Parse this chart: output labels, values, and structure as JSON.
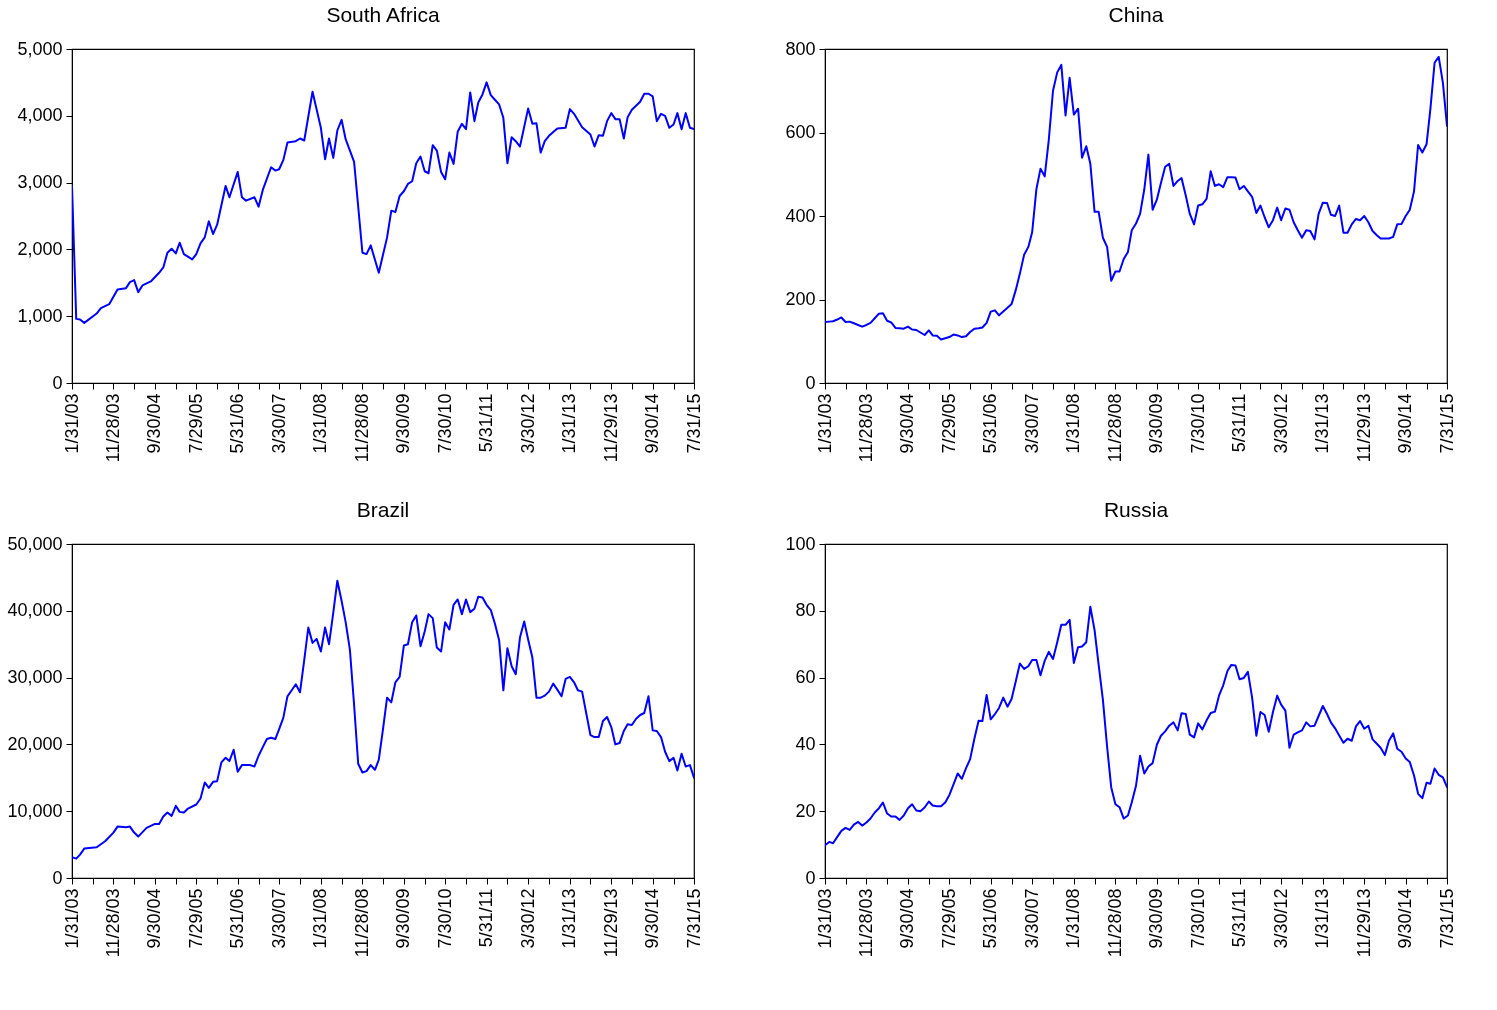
{
  "chart_data": [
    {
      "type": "line",
      "title": "South Africa",
      "line_style": "solid",
      "xlim": [
        "2003-01",
        "2015-07"
      ],
      "xticks": [
        {
          "value": "2003-01",
          "label": "1/31/03"
        },
        {
          "value": "2003-06",
          "label": null
        },
        {
          "value": "2003-11",
          "label": "11/28/03"
        },
        {
          "value": "2004-04",
          "label": null
        },
        {
          "value": "2004-09",
          "label": "9/30/04"
        },
        {
          "value": "2005-02",
          "label": null
        },
        {
          "value": "2005-07",
          "label": "7/29/05"
        },
        {
          "value": "2005-12",
          "label": null
        },
        {
          "value": "2006-05",
          "label": "5/31/06"
        },
        {
          "value": "2006-10",
          "label": null
        },
        {
          "value": "2007-03",
          "label": "3/30/07"
        },
        {
          "value": "2007-08",
          "label": null
        },
        {
          "value": "2008-01",
          "label": "1/31/08"
        },
        {
          "value": "2008-06",
          "label": null
        },
        {
          "value": "2008-11",
          "label": "11/28/08"
        },
        {
          "value": "2009-04",
          "label": null
        },
        {
          "value": "2009-09",
          "label": "9/30/09"
        },
        {
          "value": "2010-02",
          "label": null
        },
        {
          "value": "2010-07",
          "label": "7/30/10"
        },
        {
          "value": "2010-12",
          "label": null
        },
        {
          "value": "2011-05",
          "label": "5/31/11"
        },
        {
          "value": "2011-10",
          "label": null
        },
        {
          "value": "2012-03",
          "label": "3/30/12"
        },
        {
          "value": "2012-08",
          "label": null
        },
        {
          "value": "2013-01",
          "label": "1/31/13"
        },
        {
          "value": "2013-06",
          "label": null
        },
        {
          "value": "2013-11",
          "label": "11/29/13"
        },
        {
          "value": "2014-04",
          "label": null
        },
        {
          "value": "2014-09",
          "label": "9/30/14"
        },
        {
          "value": "2015-02",
          "label": null
        },
        {
          "value": "2015-07",
          "label": "7/31/15"
        }
      ],
      "ylim": [
        0,
        5000
      ],
      "yticks": [
        0,
        {
          "value": 1000,
          "label": "1,000"
        },
        {
          "value": 2000,
          "label": "2,000"
        },
        {
          "value": 3000,
          "label": "3,000"
        },
        {
          "value": 4000,
          "label": "4,000"
        },
        {
          "value": 5000,
          "label": "5,000"
        }
      ],
      "series": [
        {
          "color": "#0000ff",
          "x": [
            "2003-01",
            "2003-02",
            "2003-03",
            "2003-04",
            "2003-07",
            "2003-08",
            "2003-10",
            "2003-12",
            "2004-02",
            "2004-03",
            "2004-04",
            "2004-05",
            "2004-06",
            "2004-08",
            "2004-10",
            "2004-11",
            "2004-12",
            "2005-01",
            "2005-02",
            "2005-03",
            "2005-04",
            "2005-06",
            "2005-07",
            "2005-08",
            "2005-09",
            "2005-10",
            "2005-11",
            "2005-12",
            "2006-02",
            "2006-03",
            "2006-05",
            "2006-06",
            "2006-07",
            "2006-09",
            "2006-10",
            "2006-11",
            "2007-01",
            "2007-02",
            "2007-03",
            "2007-04",
            "2007-05",
            "2007-07",
            "2007-08",
            "2007-09",
            "2007-11",
            "2008-01",
            "2008-02",
            "2008-03",
            "2008-04",
            "2008-05",
            "2008-06",
            "2008-07",
            "2008-09",
            "2008-11",
            "2008-12",
            "2009-01",
            "2009-03",
            "2009-05",
            "2009-06",
            "2009-07",
            "2009-08",
            "2009-09",
            "2009-10",
            "2009-11",
            "2009-12",
            "2010-01",
            "2010-02",
            "2010-03",
            "2010-04",
            "2010-05",
            "2010-06",
            "2010-07",
            "2010-08",
            "2010-09",
            "2010-10",
            "2010-11",
            "2010-12",
            "2011-01",
            "2011-02",
            "2011-03",
            "2011-04",
            "2011-05",
            "2011-06",
            "2011-07",
            "2011-08",
            "2011-09",
            "2011-10",
            "2011-11",
            "2011-12",
            "2012-01",
            "2012-03",
            "2012-04",
            "2012-05",
            "2012-06",
            "2012-07",
            "2012-08",
            "2012-10",
            "2012-12",
            "2013-01",
            "2013-02",
            "2013-04",
            "2013-06",
            "2013-07",
            "2013-08",
            "2013-09",
            "2013-10",
            "2013-11",
            "2013-12",
            "2014-01",
            "2014-02",
            "2014-03",
            "2014-04",
            "2014-06",
            "2014-07",
            "2014-08",
            "2014-09",
            "2014-10",
            "2014-11",
            "2014-12",
            "2015-01",
            "2015-02",
            "2015-03",
            "2015-04",
            "2015-05",
            "2015-06",
            "2015-07"
          ],
          "values": [
            2950,
            960,
            950,
            900,
            1040,
            1120,
            1180,
            1400,
            1420,
            1510,
            1540,
            1360,
            1460,
            1520,
            1650,
            1730,
            1950,
            2010,
            1940,
            2100,
            1930,
            1850,
            1930,
            2090,
            2180,
            2420,
            2230,
            2370,
            2950,
            2780,
            3160,
            2780,
            2730,
            2780,
            2640,
            2890,
            3230,
            3180,
            3200,
            3340,
            3600,
            3620,
            3660,
            3630,
            4360,
            3820,
            3350,
            3660,
            3370,
            3780,
            3940,
            3650,
            3310,
            1950,
            1930,
            2060,
            1650,
            2180,
            2580,
            2560,
            2800,
            2870,
            2980,
            3020,
            3290,
            3390,
            3170,
            3140,
            3560,
            3480,
            3160,
            3050,
            3450,
            3280,
            3760,
            3880,
            3800,
            4350,
            3920,
            4200,
            4320,
            4500,
            4310,
            4240,
            4170,
            3970,
            3290,
            3680,
            3620,
            3540,
            4110,
            3880,
            3890,
            3450,
            3620,
            3700,
            3810,
            3820,
            4100,
            4030,
            3830,
            3720,
            3540,
            3710,
            3700,
            3920,
            4040,
            3950,
            3950,
            3660,
            3980,
            4090,
            4210,
            4330,
            4330,
            4290,
            3920,
            4030,
            4000,
            3820,
            3870,
            4040,
            3800,
            4040,
            3820,
            3800
          ]
        }
      ]
    },
    {
      "type": "line",
      "title": "China",
      "line_style": "solid",
      "xlim": [
        "2003-01",
        "2015-07"
      ],
      "xticks": [
        {
          "value": "2003-01",
          "label": "1/31/03"
        },
        {
          "value": "2003-06",
          "label": null
        },
        {
          "value": "2003-11",
          "label": "11/28/03"
        },
        {
          "value": "2004-04",
          "label": null
        },
        {
          "value": "2004-09",
          "label": "9/30/04"
        },
        {
          "value": "2005-02",
          "label": null
        },
        {
          "value": "2005-07",
          "label": "7/29/05"
        },
        {
          "value": "2005-12",
          "label": null
        },
        {
          "value": "2006-05",
          "label": "5/31/06"
        },
        {
          "value": "2006-10",
          "label": null
        },
        {
          "value": "2007-03",
          "label": "3/30/07"
        },
        {
          "value": "2007-08",
          "label": null
        },
        {
          "value": "2008-01",
          "label": "1/31/08"
        },
        {
          "value": "2008-06",
          "label": null
        },
        {
          "value": "2008-11",
          "label": "11/28/08"
        },
        {
          "value": "2009-04",
          "label": null
        },
        {
          "value": "2009-09",
          "label": "9/30/09"
        },
        {
          "value": "2010-02",
          "label": null
        },
        {
          "value": "2010-07",
          "label": "7/30/10"
        },
        {
          "value": "2010-12",
          "label": null
        },
        {
          "value": "2011-05",
          "label": "5/31/11"
        },
        {
          "value": "2011-10",
          "label": null
        },
        {
          "value": "2012-03",
          "label": "3/30/12"
        },
        {
          "value": "2012-08",
          "label": null
        },
        {
          "value": "2013-01",
          "label": "1/31/13"
        },
        {
          "value": "2013-06",
          "label": null
        },
        {
          "value": "2013-11",
          "label": "11/29/13"
        },
        {
          "value": "2014-04",
          "label": null
        },
        {
          "value": "2014-09",
          "label": "9/30/14"
        },
        {
          "value": "2015-02",
          "label": null
        },
        {
          "value": "2015-07",
          "label": "7/31/15"
        }
      ],
      "ylim": [
        0,
        800
      ],
      "yticks": [
        0,
        200,
        400,
        600,
        800
      ],
      "x": [
        "2003-01",
        "2003-02",
        "2003-03",
        "2003-04",
        "2003-05",
        "2003-06",
        "2003-07",
        "2003-08",
        "2003-09",
        "2003-10",
        "2003-11",
        "2003-12",
        "2004-01",
        "2004-02",
        "2004-03",
        "2004-04",
        "2004-05",
        "2004-06",
        "2004-07",
        "2004-08",
        "2004-09",
        "2004-10",
        "2004-11",
        "2004-12",
        "2005-01",
        "2005-02",
        "2005-03",
        "2005-04",
        "2005-05",
        "2005-06",
        "2005-07",
        "2005-08",
        "2005-09",
        "2005-10",
        "2005-11",
        "2005-12",
        "2006-01",
        "2006-02",
        "2006-03",
        "2006-04",
        "2006-05",
        "2006-06",
        "2006-07",
        "2006-08",
        "2006-09",
        "2006-10",
        "2006-11",
        "2006-12",
        "2007-01",
        "2007-02",
        "2007-03",
        "2007-04",
        "2007-05",
        "2007-06",
        "2007-07",
        "2007-08",
        "2007-09",
        "2007-10",
        "2007-11",
        "2007-12",
        "2008-01",
        "2008-02",
        "2008-03",
        "2008-04",
        "2008-05",
        "2008-06",
        "2008-07",
        "2008-08",
        "2008-09",
        "2008-10",
        "2008-11",
        "2008-12",
        "2009-01",
        "2009-02",
        "2009-03",
        "2009-04",
        "2009-05",
        "2009-06",
        "2009-07",
        "2009-08",
        "2009-09",
        "2009-10",
        "2009-11",
        "2009-12",
        "2010-01",
        "2010-02",
        "2010-03",
        "2010-04",
        "2010-05",
        "2010-06",
        "2010-07",
        "2010-08",
        "2010-09",
        "2010-10",
        "2010-11",
        "2010-12",
        "2011-01",
        "2011-02",
        "2011-03",
        "2011-04",
        "2011-05",
        "2011-06",
        "2011-07",
        "2011-08",
        "2011-09",
        "2011-10",
        "2011-11",
        "2011-12",
        "2012-01",
        "2012-02",
        "2012-03",
        "2012-04",
        "2012-05",
        "2012-06",
        "2012-07",
        "2012-08",
        "2012-09",
        "2012-10",
        "2012-11",
        "2012-12",
        "2013-01",
        "2013-02",
        "2013-03",
        "2013-04",
        "2013-05",
        "2013-06",
        "2013-07",
        "2013-08",
        "2013-09",
        "2013-10",
        "2013-11",
        "2013-12",
        "2014-01",
        "2014-02",
        "2014-03",
        "2014-04",
        "2014-05",
        "2014-06",
        "2014-07",
        "2014-08",
        "2014-09",
        "2014-10",
        "2014-11",
        "2014-12",
        "2015-01",
        "2015-02",
        "2015-03",
        "2015-04",
        "2015-05",
        "2015-06",
        "2015-07"
      ],
      "series": [
        {
          "color": "#0000ff",
          "values": [
            146,
            147,
            148,
            152,
            157,
            146,
            147,
            143,
            139,
            135,
            139,
            144,
            155,
            166,
            167,
            149,
            145,
            132,
            131,
            130,
            135,
            128,
            127,
            121,
            115,
            126,
            114,
            113,
            104,
            107,
            110,
            116,
            114,
            110,
            112,
            122,
            130,
            131,
            133,
            144,
            171,
            174,
            162,
            171,
            180,
            189,
            223,
            262,
            307,
            326,
            361,
            464,
            513,
            495,
            582,
            700,
            744,
            762,
            641,
            731,
            643,
            657,
            540,
            567,
            525,
            410,
            410,
            348,
            326,
            245,
            267,
            267,
            297,
            314,
            366,
            382,
            405,
            464,
            547,
            415,
            439,
            479,
            518,
            525,
            472,
            484,
            491,
            449,
            405,
            380,
            425,
            428,
            441,
            507,
            472,
            476,
            469,
            493,
            493,
            492,
            464,
            472,
            459,
            446,
            407,
            425,
            397,
            373,
            390,
            420,
            390,
            418,
            415,
            385,
            366,
            348,
            366,
            364,
            344,
            405,
            432,
            431,
            403,
            400,
            425,
            360,
            360,
            380,
            393,
            390,
            400,
            385,
            364,
            354,
            346,
            346,
            346,
            350,
            380,
            381,
            400,
            415,
            459,
            570,
            552,
            572,
            656,
            767,
            781,
            719,
            616
          ]
        }
      ]
    },
    {
      "type": "line",
      "title": "Brazil",
      "line_style": "solid",
      "xlim": [
        "2003-01",
        "2015-07"
      ],
      "xticks": [
        {
          "value": "2003-01",
          "label": "1/31/03"
        },
        {
          "value": "2003-06",
          "label": null
        },
        {
          "value": "2003-11",
          "label": "11/28/03"
        },
        {
          "value": "2004-04",
          "label": null
        },
        {
          "value": "2004-09",
          "label": "9/30/04"
        },
        {
          "value": "2005-02",
          "label": null
        },
        {
          "value": "2005-07",
          "label": "7/29/05"
        },
        {
          "value": "2005-12",
          "label": null
        },
        {
          "value": "2006-05",
          "label": "5/31/06"
        },
        {
          "value": "2006-10",
          "label": null
        },
        {
          "value": "2007-03",
          "label": "3/30/07"
        },
        {
          "value": "2007-08",
          "label": null
        },
        {
          "value": "2008-01",
          "label": "1/31/08"
        },
        {
          "value": "2008-06",
          "label": null
        },
        {
          "value": "2008-11",
          "label": "11/28/08"
        },
        {
          "value": "2009-04",
          "label": null
        },
        {
          "value": "2009-09",
          "label": "9/30/09"
        },
        {
          "value": "2010-02",
          "label": null
        },
        {
          "value": "2010-07",
          "label": "7/30/10"
        },
        {
          "value": "2010-12",
          "label": null
        },
        {
          "value": "2011-05",
          "label": "5/31/11"
        },
        {
          "value": "2011-10",
          "label": null
        },
        {
          "value": "2012-03",
          "label": "3/30/12"
        },
        {
          "value": "2012-08",
          "label": null
        },
        {
          "value": "2013-01",
          "label": "1/31/13"
        },
        {
          "value": "2013-06",
          "label": null
        },
        {
          "value": "2013-11",
          "label": "11/29/13"
        },
        {
          "value": "2014-04",
          "label": null
        },
        {
          "value": "2014-09",
          "label": "9/30/14"
        },
        {
          "value": "2015-02",
          "label": null
        },
        {
          "value": "2015-07",
          "label": "7/31/15"
        }
      ],
      "ylim": [
        0,
        50000
      ],
      "yticks": [
        0,
        {
          "value": 10000,
          "label": "10,000"
        },
        {
          "value": 20000,
          "label": "20,000"
        },
        {
          "value": 30000,
          "label": "30,000"
        },
        {
          "value": 40000,
          "label": "40,000"
        },
        {
          "value": 50000,
          "label": "50,000"
        }
      ],
      "series": [
        {
          "color": "#0000ff",
          "x": [
            "2003-01",
            "2003-02",
            "2003-03",
            "2003-04",
            "2003-07",
            "2003-09",
            "2003-11",
            "2003-12",
            "2004-02",
            "2004-03",
            "2004-04",
            "2004-05",
            "2004-07",
            "2004-09",
            "2004-10",
            "2004-11",
            "2004-12",
            "2005-01",
            "2005-02",
            "2005-03",
            "2005-04",
            "2005-05",
            "2005-07",
            "2005-08",
            "2005-09",
            "2005-10",
            "2005-11",
            "2005-12",
            "2006-01",
            "2006-02",
            "2006-03",
            "2006-04",
            "2006-05",
            "2006-06",
            "2006-08",
            "2006-09",
            "2006-10",
            "2006-11",
            "2006-12",
            "2007-01",
            "2007-02",
            "2007-03",
            "2007-04",
            "2007-05",
            "2007-06",
            "2007-07",
            "2007-08",
            "2007-09",
            "2007-10",
            "2007-11",
            "2007-12",
            "2008-01",
            "2008-02",
            "2008-03",
            "2008-04",
            "2008-05",
            "2008-06",
            "2008-07",
            "2008-08",
            "2008-09",
            "2008-10",
            "2008-11",
            "2008-12",
            "2009-01",
            "2009-02",
            "2009-03",
            "2009-04",
            "2009-05",
            "2009-06",
            "2009-07",
            "2009-08",
            "2009-09",
            "2009-10",
            "2009-11",
            "2009-12",
            "2010-01",
            "2010-02",
            "2010-03",
            "2010-04",
            "2010-05",
            "2010-06",
            "2010-07",
            "2010-08",
            "2010-09",
            "2010-10",
            "2010-11",
            "2010-12",
            "2011-01",
            "2011-02",
            "2011-03",
            "2011-04",
            "2011-05",
            "2011-06",
            "2011-07",
            "2011-08",
            "2011-09",
            "2011-10",
            "2011-11",
            "2011-12",
            "2012-01",
            "2012-02",
            "2012-03",
            "2012-04",
            "2012-05",
            "2012-06",
            "2012-07",
            "2012-08",
            "2012-09",
            "2012-10",
            "2012-11",
            "2012-12",
            "2013-01",
            "2013-02",
            "2013-03",
            "2013-04",
            "2013-05",
            "2013-06",
            "2013-07",
            "2013-08",
            "2013-09",
            "2013-10",
            "2013-11",
            "2013-12",
            "2014-01",
            "2014-02",
            "2014-03",
            "2014-04",
            "2014-05",
            "2014-06",
            "2014-07",
            "2014-08",
            "2014-09",
            "2014-10",
            "2014-11",
            "2014-12",
            "2015-01",
            "2015-02",
            "2015-03",
            "2015-04",
            "2015-05",
            "2015-06",
            "2015-07"
          ],
          "values": [
            3100,
            2900,
            3500,
            4400,
            4600,
            5500,
            6800,
            7700,
            7600,
            7700,
            6800,
            6200,
            7500,
            8100,
            8100,
            9200,
            9800,
            9300,
            10800,
            9900,
            9800,
            10400,
            11000,
            11900,
            14300,
            13500,
            14400,
            14500,
            17300,
            18000,
            17500,
            19200,
            15900,
            16900,
            16900,
            16700,
            18300,
            19600,
            20800,
            21000,
            20800,
            22300,
            24000,
            27200,
            28100,
            29000,
            27800,
            32600,
            37500,
            35200,
            35800,
            33900,
            37500,
            35000,
            39700,
            44500,
            41500,
            38300,
            34200,
            25900,
            17100,
            15800,
            16000,
            16900,
            16200,
            17700,
            22300,
            27000,
            26300,
            29300,
            30100,
            34800,
            35000,
            38300,
            39300,
            34700,
            36900,
            39500,
            38900,
            34500,
            33900,
            38300,
            37200,
            40900,
            41700,
            39500,
            41700,
            39800,
            40300,
            42100,
            42000,
            40900,
            40100,
            38100,
            35600,
            28100,
            34400,
            31700,
            30500,
            36000,
            38400,
            35700,
            33000,
            27000,
            27000,
            27300,
            27900,
            29100,
            28200,
            27200,
            29800,
            30100,
            29300,
            28100,
            27900,
            24700,
            21400,
            21100,
            21100,
            23500,
            24100,
            22600,
            20000,
            20200,
            22000,
            23000,
            22900,
            23800,
            24400,
            24700,
            27200,
            22100,
            22000,
            21100,
            18900,
            17500,
            18000,
            16100,
            18600,
            16700,
            16900,
            15000
          ]
        }
      ]
    },
    {
      "type": "line",
      "title": "Russia",
      "line_style": "solid",
      "xlim": [
        "2003-01",
        "2015-07"
      ],
      "xticks": [
        {
          "value": "2003-01",
          "label": "1/31/03"
        },
        {
          "value": "2003-06",
          "label": null
        },
        {
          "value": "2003-11",
          "label": "11/28/03"
        },
        {
          "value": "2004-04",
          "label": null
        },
        {
          "value": "2004-09",
          "label": "9/30/04"
        },
        {
          "value": "2005-02",
          "label": null
        },
        {
          "value": "2005-07",
          "label": "7/29/05"
        },
        {
          "value": "2005-12",
          "label": null
        },
        {
          "value": "2006-05",
          "label": "5/31/06"
        },
        {
          "value": "2006-10",
          "label": null
        },
        {
          "value": "2007-03",
          "label": "3/30/07"
        },
        {
          "value": "2007-08",
          "label": null
        },
        {
          "value": "2008-01",
          "label": "1/31/08"
        },
        {
          "value": "2008-06",
          "label": null
        },
        {
          "value": "2008-11",
          "label": "11/28/08"
        },
        {
          "value": "2009-04",
          "label": null
        },
        {
          "value": "2009-09",
          "label": "9/30/09"
        },
        {
          "value": "2010-02",
          "label": null
        },
        {
          "value": "2010-07",
          "label": "7/30/10"
        },
        {
          "value": "2010-12",
          "label": null
        },
        {
          "value": "2011-05",
          "label": "5/31/11"
        },
        {
          "value": "2011-10",
          "label": null
        },
        {
          "value": "2012-03",
          "label": "3/30/12"
        },
        {
          "value": "2012-08",
          "label": null
        },
        {
          "value": "2013-01",
          "label": "1/31/13"
        },
        {
          "value": "2013-06",
          "label": null
        },
        {
          "value": "2013-11",
          "label": "11/29/13"
        },
        {
          "value": "2014-04",
          "label": null
        },
        {
          "value": "2014-09",
          "label": "9/30/14"
        },
        {
          "value": "2015-02",
          "label": null
        },
        {
          "value": "2015-07",
          "label": "7/31/15"
        }
      ],
      "ylim": [
        0,
        100
      ],
      "yticks": [
        0,
        20,
        40,
        60,
        80,
        100
      ],
      "x": [
        "2003-01",
        "2003-02",
        "2003-03",
        "2003-04",
        "2003-05",
        "2003-06",
        "2003-07",
        "2003-08",
        "2003-09",
        "2003-10",
        "2003-11",
        "2003-12",
        "2004-01",
        "2004-02",
        "2004-03",
        "2004-04",
        "2004-05",
        "2004-06",
        "2004-07",
        "2004-08",
        "2004-09",
        "2004-10",
        "2004-11",
        "2004-12",
        "2005-01",
        "2005-02",
        "2005-03",
        "2005-04",
        "2005-05",
        "2005-06",
        "2005-07",
        "2005-08",
        "2005-09",
        "2005-10",
        "2005-11",
        "2005-12",
        "2006-01",
        "2006-02",
        "2006-03",
        "2006-04",
        "2006-05",
        "2006-06",
        "2006-07",
        "2006-08",
        "2006-09",
        "2006-10",
        "2006-11",
        "2006-12",
        "2007-01",
        "2007-02",
        "2007-03",
        "2007-04",
        "2007-05",
        "2007-06",
        "2007-07",
        "2007-08",
        "2007-09",
        "2007-10",
        "2007-11",
        "2007-12",
        "2008-01",
        "2008-02",
        "2008-03",
        "2008-04",
        "2008-05",
        "2008-06",
        "2008-07",
        "2008-08",
        "2008-09",
        "2008-10",
        "2008-11",
        "2008-12",
        "2009-01",
        "2009-02",
        "2009-03",
        "2009-04",
        "2009-05",
        "2009-06",
        "2009-07",
        "2009-08",
        "2009-09",
        "2009-10",
        "2009-11",
        "2009-12",
        "2010-01",
        "2010-02",
        "2010-03",
        "2010-04",
        "2010-05",
        "2010-06",
        "2010-07",
        "2010-08",
        "2010-09",
        "2010-10",
        "2010-11",
        "2010-12",
        "2011-01",
        "2011-02",
        "2011-03",
        "2011-04",
        "2011-05",
        "2011-06",
        "2011-07",
        "2011-08",
        "2011-09",
        "2011-10",
        "2011-11",
        "2011-12",
        "2012-01",
        "2012-02",
        "2012-03",
        "2012-04",
        "2012-05",
        "2012-06",
        "2012-07",
        "2012-08",
        "2012-09",
        "2012-10",
        "2012-11",
        "2012-12",
        "2013-01",
        "2013-02",
        "2013-03",
        "2013-04",
        "2013-05",
        "2013-06",
        "2013-07",
        "2013-08",
        "2013-09",
        "2013-10",
        "2013-11",
        "2013-12",
        "2014-01",
        "2014-02",
        "2014-03",
        "2014-04",
        "2014-05",
        "2014-06",
        "2014-07",
        "2014-08",
        "2014-09",
        "2014-10",
        "2014-11",
        "2014-12",
        "2015-01",
        "2015-02",
        "2015-03",
        "2015-04",
        "2015-05",
        "2015-06",
        "2015-07"
      ],
      "series": [
        {
          "color": "#0000ff",
          "values": [
            9.8,
            10.8,
            10.4,
            12.3,
            14.1,
            15.0,
            14.4,
            16.0,
            16.8,
            15.7,
            16.6,
            17.8,
            19.6,
            20.9,
            22.6,
            19.3,
            18.4,
            18.4,
            17.4,
            18.7,
            20.9,
            22.1,
            20.2,
            20.0,
            21.1,
            22.9,
            21.7,
            21.5,
            21.5,
            22.6,
            24.8,
            28.0,
            31.3,
            29.7,
            32.9,
            35.6,
            41.7,
            47.1,
            47.0,
            54.8,
            47.5,
            49.1,
            50.9,
            54.0,
            51.3,
            53.6,
            58.9,
            64.2,
            62.6,
            63.4,
            65.3,
            65.3,
            60.7,
            65.0,
            67.7,
            65.6,
            70.6,
            75.8,
            75.8,
            77.3,
            64.4,
            69.1,
            69.3,
            70.6,
            81.2,
            74.2,
            63.8,
            53.4,
            39.3,
            27.2,
            22.1,
            21.2,
            17.8,
            18.7,
            22.7,
            27.6,
            36.6,
            31.3,
            33.4,
            34.4,
            39.9,
            42.6,
            43.9,
            45.6,
            46.6,
            44.2,
            49.3,
            49.1,
            42.9,
            42.1,
            46.3,
            44.5,
            47.2,
            49.4,
            49.8,
            54.6,
            57.7,
            62.0,
            63.8,
            63.6,
            59.5,
            59.9,
            61.7,
            54.0,
            42.6,
            49.7,
            48.8,
            43.8,
            49.7,
            54.6,
            51.9,
            50.1,
            39.0,
            42.9,
            43.6,
            44.2,
            46.6,
            45.4,
            45.6,
            48.5,
            51.5,
            49.1,
            46.6,
            44.8,
            42.7,
            40.5,
            41.7,
            41.1,
            45.4,
            47.0,
            44.7,
            45.6,
            41.5,
            40.2,
            39.0,
            36.8,
            41.1,
            43.3,
            38.7,
            37.8,
            35.8,
            34.7,
            30.7,
            25.2,
            23.9,
            28.5,
            28.2,
            32.8,
            30.9,
            30.1,
            27.2
          ]
        }
      ]
    }
  ]
}
